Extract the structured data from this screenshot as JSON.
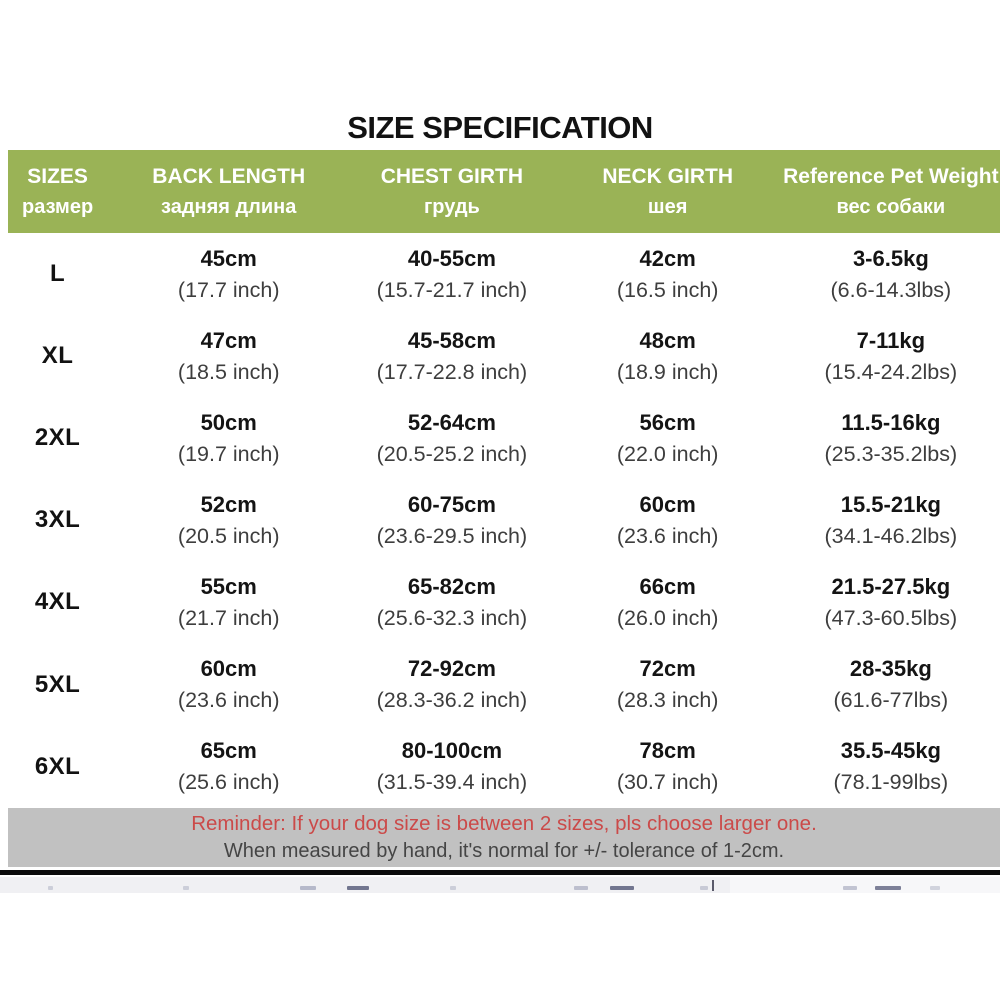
{
  "title": "SIZE SPECIFICATION",
  "colors": {
    "header_green": "#9ab356",
    "footer_gray": "#c1c1c1",
    "reminder_red": "#cb4a49"
  },
  "table": {
    "columns": [
      {
        "en": "SIZES",
        "ru": "размер"
      },
      {
        "en": "BACK LENGTH",
        "ru": "задняя длина"
      },
      {
        "en": "CHEST GIRTH",
        "ru": "грудь"
      },
      {
        "en": "NECK GIRTH",
        "ru": "шея"
      },
      {
        "en": "Reference Pet Weight",
        "ru": "вес собаки"
      }
    ],
    "rows": [
      {
        "size": "L",
        "back_cm": "45cm",
        "back_inch": "(17.7 inch)",
        "chest_cm": "40-55cm",
        "chest_inch": "(15.7-21.7 inch)",
        "neck_cm": "42cm",
        "neck_inch": "(16.5 inch)",
        "weight_kg": "3-6.5kg",
        "weight_lbs": "(6.6-14.3lbs)"
      },
      {
        "size": "XL",
        "back_cm": "47cm",
        "back_inch": "(18.5 inch)",
        "chest_cm": "45-58cm",
        "chest_inch": "(17.7-22.8 inch)",
        "neck_cm": "48cm",
        "neck_inch": "(18.9 inch)",
        "weight_kg": "7-11kg",
        "weight_lbs": "(15.4-24.2lbs)"
      },
      {
        "size": "2XL",
        "back_cm": "50cm",
        "back_inch": "(19.7 inch)",
        "chest_cm": "52-64cm",
        "chest_inch": "(20.5-25.2 inch)",
        "neck_cm": "56cm",
        "neck_inch": "(22.0 inch)",
        "weight_kg": "11.5-16kg",
        "weight_lbs": "(25.3-35.2lbs)"
      },
      {
        "size": "3XL",
        "back_cm": "52cm",
        "back_inch": "(20.5 inch)",
        "chest_cm": "60-75cm",
        "chest_inch": "(23.6-29.5 inch)",
        "neck_cm": "60cm",
        "neck_inch": "(23.6 inch)",
        "weight_kg": "15.5-21kg",
        "weight_lbs": "(34.1-46.2lbs)"
      },
      {
        "size": "4XL",
        "back_cm": "55cm",
        "back_inch": "(21.7 inch)",
        "chest_cm": "65-82cm",
        "chest_inch": "(25.6-32.3 inch)",
        "neck_cm": "66cm",
        "neck_inch": "(26.0 inch)",
        "weight_kg": "21.5-27.5kg",
        "weight_lbs": "(47.3-60.5lbs)"
      },
      {
        "size": "5XL",
        "back_cm": "60cm",
        "back_inch": "(23.6 inch)",
        "chest_cm": "72-92cm",
        "chest_inch": "(28.3-36.2 inch)",
        "neck_cm": "72cm",
        "neck_inch": "(28.3 inch)",
        "weight_kg": "28-35kg",
        "weight_lbs": "(61.6-77lbs)"
      },
      {
        "size": "6XL",
        "back_cm": "65cm",
        "back_inch": "(25.6 inch)",
        "chest_cm": "80-100cm",
        "chest_inch": "(31.5-39.4 inch)",
        "neck_cm": "78cm",
        "neck_inch": "(30.7 inch)",
        "weight_kg": "35.5-45kg",
        "weight_lbs": "(78.1-99lbs)"
      }
    ]
  },
  "footer": {
    "reminder": "Reminder: If your dog size is between 2 sizes, pls choose larger one.",
    "tolerance": "When measured by hand, it's normal for +/- tolerance of 1-2cm."
  },
  "chart_data": {
    "type": "table",
    "title": "SIZE SPECIFICATION",
    "columns": [
      "SIZES размер",
      "BACK LENGTH задняя длина",
      "CHEST GIRTH грудь",
      "NECK GIRTH шея",
      "Reference Pet Weight вес собаки"
    ],
    "rows": [
      [
        "L",
        "45cm (17.7 inch)",
        "40-55cm (15.7-21.7 inch)",
        "42cm (16.5 inch)",
        "3-6.5kg (6.6-14.3lbs)"
      ],
      [
        "XL",
        "47cm (18.5 inch)",
        "45-58cm (17.7-22.8 inch)",
        "48cm (18.9 inch)",
        "7-11kg (15.4-24.2lbs)"
      ],
      [
        "2XL",
        "50cm (19.7 inch)",
        "52-64cm (20.5-25.2 inch)",
        "56cm (22.0 inch)",
        "11.5-16kg (25.3-35.2lbs)"
      ],
      [
        "3XL",
        "52cm (20.5 inch)",
        "60-75cm (23.6-29.5 inch)",
        "60cm (23.6 inch)",
        "15.5-21kg (34.1-46.2lbs)"
      ],
      [
        "4XL",
        "55cm (21.7 inch)",
        "65-82cm (25.6-32.3 inch)",
        "66cm (26.0 inch)",
        "21.5-27.5kg (47.3-60.5lbs)"
      ],
      [
        "5XL",
        "60cm (23.6 inch)",
        "72-92cm (28.3-36.2 inch)",
        "72cm (28.3 inch)",
        "28-35kg (61.6-77lbs)"
      ],
      [
        "6XL",
        "65cm (25.6 inch)",
        "80-100cm (31.5-39.4 inch)",
        "78cm (30.7 inch)",
        "35.5-45kg (78.1-99lbs)"
      ]
    ],
    "notes": [
      "Reminder: If your dog size is between 2 sizes, pls choose larger one.",
      "When measured by hand, it's normal for +/- tolerance of 1-2cm."
    ]
  }
}
